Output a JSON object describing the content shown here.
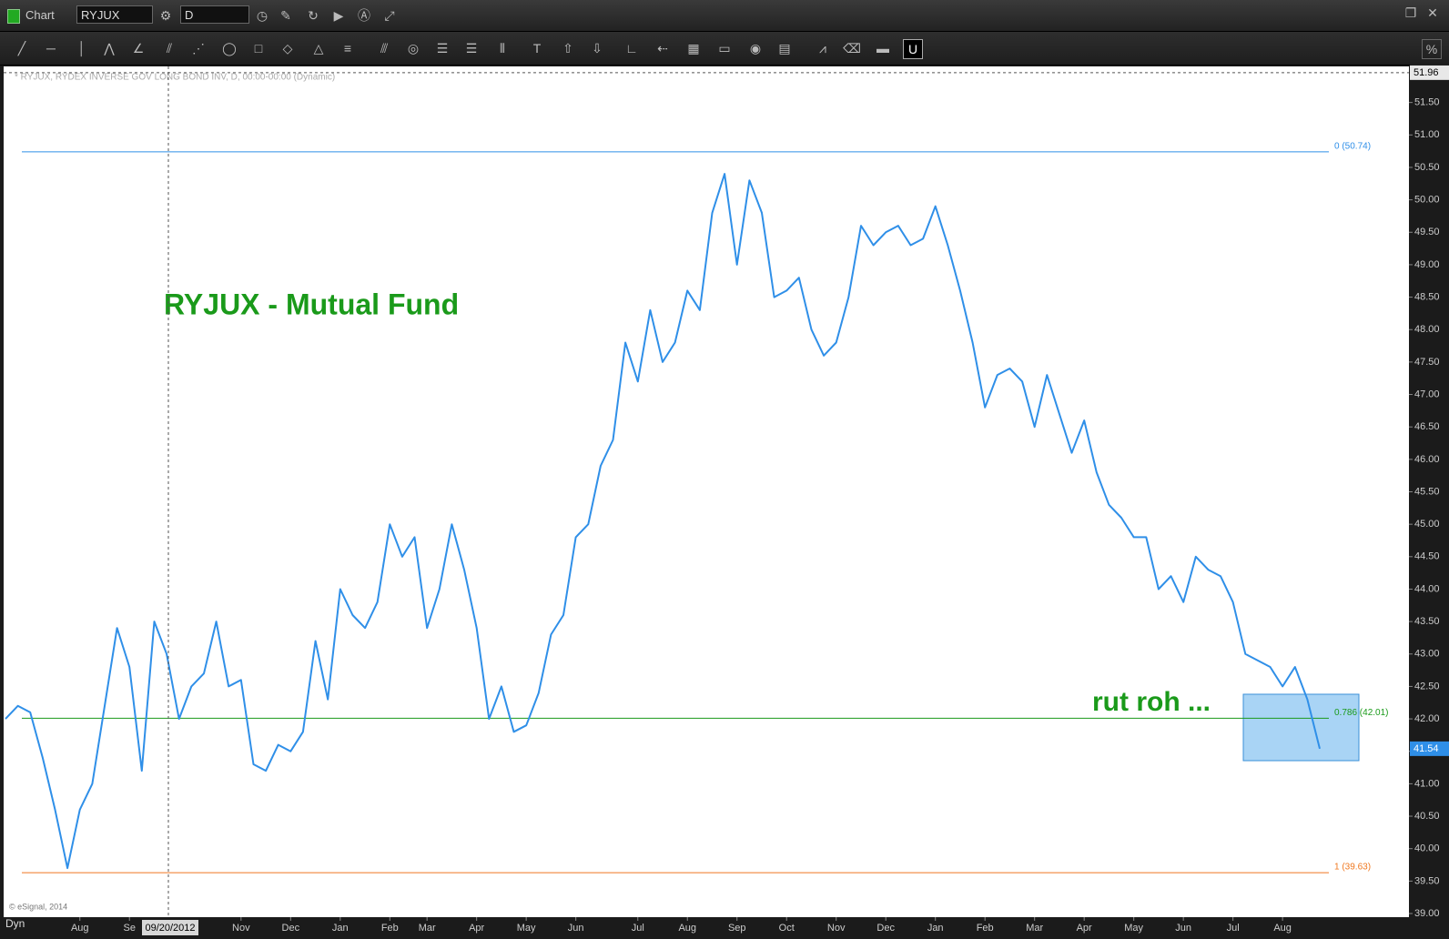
{
  "window": {
    "title": "Chart",
    "symbol": "RYJUX",
    "interval": "D",
    "crosshair_date": "09/20/2012",
    "mode": "Dyn",
    "copyright": "© eSignal, 2014"
  },
  "chart_data": {
    "type": "line",
    "title": "RYJUX - Mutual Fund",
    "subtitle": "* RYJUX, RYDEX INVERSE GOV LONG BOND INV, D, 00:00-00:00 (Dynamic)",
    "annotation": "rut roh ...",
    "categories": [
      null,
      null,
      null,
      null,
      null,
      null,
      "Aug",
      null,
      null,
      null,
      "Se",
      null,
      null,
      null,
      null,
      null,
      null,
      null,
      null,
      "Nov",
      null,
      null,
      null,
      "Dec",
      null,
      null,
      null,
      "Jan",
      null,
      null,
      null,
      "Feb",
      null,
      null,
      "Mar",
      null,
      null,
      null,
      "Apr",
      null,
      null,
      null,
      "May",
      null,
      null,
      null,
      "Jun",
      null,
      null,
      null,
      null,
      "Jul",
      null,
      null,
      null,
      "Aug",
      null,
      null,
      null,
      "Sep",
      null,
      null,
      null,
      "Oct",
      null,
      null,
      null,
      "Nov",
      null,
      null,
      null,
      "Dec",
      null,
      null,
      null,
      "Jan",
      null,
      null,
      null,
      "Feb",
      null,
      null,
      null,
      "Mar",
      null,
      null,
      null,
      "Apr",
      null,
      null,
      null,
      "May",
      null,
      null,
      null,
      "Jun",
      null,
      null,
      null,
      "Jul",
      null,
      null,
      null,
      "Aug",
      null,
      null,
      null
    ],
    "series": [
      {
        "name": "RYJUX",
        "color": "#2f8fe8",
        "values": [
          42.0,
          42.2,
          42.1,
          41.4,
          40.6,
          39.7,
          40.6,
          41.0,
          42.2,
          43.4,
          42.8,
          41.2,
          43.5,
          43.0,
          42.0,
          42.5,
          42.7,
          43.5,
          42.5,
          42.6,
          41.3,
          41.2,
          41.6,
          41.5,
          41.8,
          43.2,
          42.3,
          44.0,
          43.6,
          43.4,
          43.8,
          45.0,
          44.5,
          44.8,
          43.4,
          44.0,
          45.0,
          44.3,
          43.4,
          42.0,
          42.5,
          41.8,
          41.9,
          42.4,
          43.3,
          43.6,
          44.8,
          45.0,
          45.9,
          46.3,
          47.8,
          47.2,
          48.3,
          47.5,
          47.8,
          48.6,
          48.3,
          49.8,
          50.4,
          49.0,
          50.3,
          49.8,
          48.5,
          48.6,
          48.8,
          48.0,
          47.6,
          47.8,
          48.5,
          49.6,
          49.3,
          49.5,
          49.6,
          49.3,
          49.4,
          49.9,
          49.3,
          48.6,
          47.8,
          46.8,
          47.3,
          47.4,
          47.2,
          46.5,
          47.3,
          46.7,
          46.1,
          46.6,
          45.8,
          45.3,
          45.1,
          44.8,
          44.8,
          44.0,
          44.2,
          43.8,
          44.5,
          44.3,
          44.2,
          43.8,
          43.0,
          42.9,
          42.8,
          42.5,
          42.8,
          42.3,
          41.54
        ]
      }
    ],
    "levels": [
      {
        "label": "0 (50.74)",
        "value": 50.74,
        "color": "#2f8fe8"
      },
      {
        "label": "0.786 (42.01)",
        "value": 42.01,
        "color": "#1a9a1a"
      },
      {
        "label": "1 (39.63)",
        "value": 39.63,
        "color": "#f07820"
      }
    ],
    "crosshair_value": 51.96,
    "ylim": [
      39,
      52
    ],
    "yticks": [
      {
        "value": 39,
        "label": "39.00"
      },
      {
        "value": 39.5,
        "label": "39.50"
      },
      {
        "value": 40,
        "label": "40.00"
      },
      {
        "value": 40.5,
        "label": "40.50"
      },
      {
        "value": 41,
        "label": "41.00"
      },
      {
        "value": 41.5,
        "label": "41.50"
      },
      {
        "value": 42,
        "label": "42.00"
      },
      {
        "value": 42.5,
        "label": "42.50"
      },
      {
        "value": 43,
        "label": "43.00"
      },
      {
        "value": 43.5,
        "label": "43.50"
      },
      {
        "value": 44,
        "label": "44.00"
      },
      {
        "value": 44.5,
        "label": "44.50"
      },
      {
        "value": 45,
        "label": "45.00"
      },
      {
        "value": 45.5,
        "label": "45.50"
      },
      {
        "value": 46,
        "label": "46.00"
      },
      {
        "value": 46.5,
        "label": "46.50"
      },
      {
        "value": 47,
        "label": "47.00"
      },
      {
        "value": 47.5,
        "label": "47.50"
      },
      {
        "value": 48,
        "label": "48.00"
      },
      {
        "value": 48.5,
        "label": "48.50"
      },
      {
        "value": 49,
        "label": "49.00"
      },
      {
        "value": 49.5,
        "label": "49.50"
      },
      {
        "value": 50,
        "label": "50.00"
      },
      {
        "value": 50.5,
        "label": "50.50"
      },
      {
        "value": 51,
        "label": "51.00"
      },
      {
        "value": 51.5,
        "label": "51.50"
      }
    ],
    "grid": false
  }
}
